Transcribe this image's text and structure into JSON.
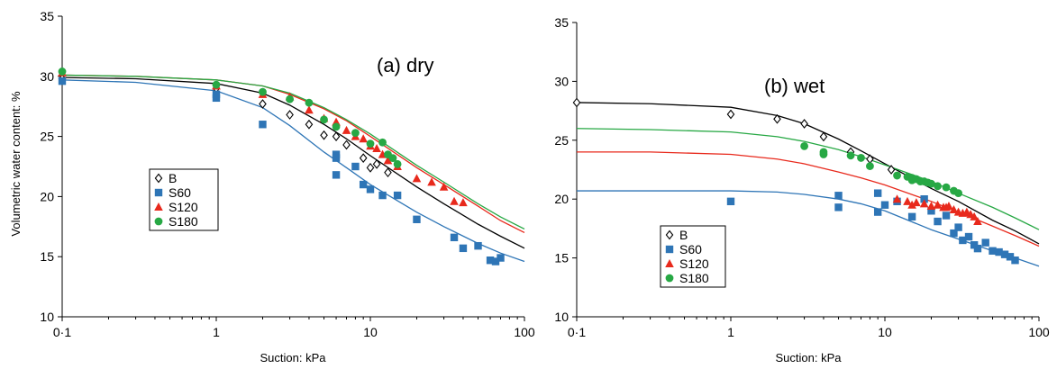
{
  "chart_data": [
    {
      "type": "scatter",
      "title": "(a) dry",
      "xlabel": "Suction: kPa",
      "ylabel": "Volumetric water content: %",
      "xscale": "log",
      "xlim": [
        0.1,
        100
      ],
      "ylim": [
        10,
        35
      ],
      "x_tick_labels": [
        "0·1",
        "1",
        "10",
        "100"
      ],
      "y_tick_labels": [
        "10",
        "15",
        "20",
        "25",
        "30",
        "35"
      ],
      "legend": {
        "entries": [
          "B",
          "S60",
          "S120",
          "S180"
        ],
        "placement": "middle-left"
      },
      "series": [
        {
          "name": "B",
          "color": "#000000",
          "marker": "diamond-open",
          "x": [
            0.1,
            1,
            2,
            3,
            4,
            5,
            6,
            7,
            9,
            10,
            11,
            13
          ],
          "y": [
            29.8,
            29.0,
            27.7,
            26.8,
            26.0,
            25.1,
            25.0,
            24.3,
            23.2,
            22.4,
            22.7,
            22.0
          ],
          "fit": {
            "x": [
              0.1,
              0.3,
              1,
              2,
              3,
              5,
              7,
              10,
              20,
              30,
              50,
              70,
              100
            ],
            "y": [
              29.9,
              29.8,
              29.4,
              28.6,
              27.6,
              26.0,
              24.8,
              23.4,
              20.8,
              19.4,
              17.7,
              16.7,
              15.7
            ]
          }
        },
        {
          "name": "S60",
          "color": "#2e75b6",
          "marker": "square",
          "x": [
            0.1,
            1,
            1,
            2,
            6,
            6,
            6,
            8,
            9,
            10,
            12,
            15,
            20,
            35,
            40,
            50,
            60,
            65,
            70
          ],
          "y": [
            29.6,
            28.5,
            28.2,
            26.0,
            23.5,
            23.2,
            21.8,
            22.5,
            21.0,
            20.6,
            20.1,
            20.1,
            18.1,
            16.6,
            15.7,
            15.9,
            14.7,
            14.6,
            14.9
          ],
          "fit": {
            "x": [
              0.1,
              0.3,
              1,
              2,
              3,
              5,
              7,
              10,
              20,
              30,
              50,
              70,
              100
            ],
            "y": [
              29.7,
              29.5,
              28.8,
              27.4,
              25.9,
              23.7,
              22.4,
              21.0,
              18.7,
              17.5,
              16.1,
              15.3,
              14.6
            ]
          }
        },
        {
          "name": "S120",
          "color": "#e8291c",
          "marker": "triangle",
          "x": [
            0.1,
            1,
            2,
            3,
            4,
            5,
            6,
            7,
            8,
            9,
            10,
            11,
            12,
            13,
            15,
            20,
            25,
            30,
            35,
            40
          ],
          "y": [
            30.3,
            29.2,
            28.5,
            28.3,
            27.2,
            26.5,
            26.2,
            25.5,
            25.0,
            24.8,
            24.2,
            24.0,
            23.5,
            23.0,
            22.5,
            21.5,
            21.2,
            20.8,
            19.6,
            19.5
          ],
          "fit": {
            "x": [
              0.1,
              0.3,
              1,
              2,
              3,
              5,
              7,
              10,
              20,
              30,
              50,
              70,
              100
            ],
            "y": [
              30.1,
              30.0,
              29.7,
              29.2,
              28.5,
              27.3,
              26.3,
              25.0,
              22.4,
              21.0,
              19.2,
              18.0,
              17.0
            ]
          }
        },
        {
          "name": "S180",
          "color": "#27a844",
          "marker": "circle",
          "x": [
            0.1,
            1,
            2,
            3,
            4,
            5,
            6,
            8,
            10,
            12,
            13,
            14,
            15
          ],
          "y": [
            30.4,
            29.3,
            28.7,
            28.1,
            27.8,
            26.4,
            25.8,
            25.3,
            24.4,
            24.5,
            23.5,
            23.2,
            22.7
          ],
          "fit": {
            "x": [
              0.1,
              0.3,
              1,
              2,
              3,
              5,
              7,
              10,
              20,
              30,
              50,
              70,
              100
            ],
            "y": [
              30.1,
              30.0,
              29.7,
              29.2,
              28.6,
              27.4,
              26.4,
              25.2,
              22.6,
              21.2,
              19.4,
              18.3,
              17.3
            ]
          }
        }
      ]
    },
    {
      "type": "scatter",
      "title": "(b) wet",
      "xlabel": "Suction: kPa",
      "ylabel": "",
      "xscale": "log",
      "xlim": [
        0.1,
        100
      ],
      "ylim": [
        10,
        35
      ],
      "x_tick_labels": [
        "0·1",
        "1",
        "10",
        "100"
      ],
      "y_tick_labels": [
        "10",
        "15",
        "20",
        "25",
        "30",
        "35"
      ],
      "legend": {
        "entries": [
          "B",
          "S60",
          "S120",
          "S180"
        ],
        "placement": "bottom-left"
      },
      "series": [
        {
          "name": "B",
          "color": "#000000",
          "marker": "diamond-open",
          "x": [
            0.1,
            1,
            2,
            3,
            4,
            6,
            8,
            11
          ],
          "y": [
            28.2,
            27.2,
            26.8,
            26.4,
            25.3,
            24.0,
            23.4,
            22.5
          ],
          "fit": {
            "x": [
              0.1,
              0.3,
              1,
              2,
              3,
              5,
              7,
              10,
              20,
              30,
              50,
              70,
              100
            ],
            "y": [
              28.2,
              28.1,
              27.8,
              27.1,
              26.4,
              25.1,
              24.1,
              23.0,
              20.9,
              19.8,
              18.2,
              17.3,
              16.2
            ]
          }
        },
        {
          "name": "S60",
          "color": "#2e75b6",
          "marker": "square",
          "x": [
            1,
            5,
            5,
            9,
            9,
            10,
            12,
            15,
            18,
            20,
            22,
            25,
            28,
            30,
            32,
            35,
            38,
            40,
            45,
            50,
            55,
            60,
            65,
            70
          ],
          "y": [
            19.8,
            20.3,
            19.3,
            20.5,
            18.9,
            19.5,
            19.8,
            18.5,
            20.0,
            19.0,
            18.1,
            18.6,
            17.1,
            17.6,
            16.5,
            16.8,
            16.1,
            15.8,
            16.3,
            15.6,
            15.5,
            15.3,
            15.1,
            14.8
          ],
          "fit": {
            "x": [
              0.1,
              0.3,
              1,
              2,
              3,
              5,
              7,
              10,
              20,
              30,
              50,
              70,
              100
            ],
            "y": [
              20.7,
              20.7,
              20.7,
              20.6,
              20.4,
              20.0,
              19.6,
              19.0,
              17.4,
              16.6,
              15.6,
              15.0,
              14.3
            ]
          }
        },
        {
          "name": "S120",
          "color": "#e8291c",
          "marker": "triangle",
          "x": [
            12,
            14,
            15,
            16,
            18,
            20,
            22,
            24,
            25,
            26,
            28,
            30,
            32,
            34,
            36,
            38,
            40
          ],
          "y": [
            20.0,
            19.8,
            19.5,
            19.7,
            19.6,
            19.4,
            19.5,
            19.3,
            19.3,
            19.4,
            19.1,
            18.9,
            18.8,
            18.9,
            18.7,
            18.5,
            18.1
          ],
          "fit": {
            "x": [
              0.1,
              0.3,
              1,
              2,
              3,
              5,
              7,
              10,
              20,
              30,
              50,
              70,
              100
            ],
            "y": [
              24.0,
              24.0,
              23.8,
              23.4,
              23.0,
              22.3,
              21.8,
              21.2,
              19.8,
              18.9,
              17.7,
              16.9,
              16.0
            ]
          }
        },
        {
          "name": "S180",
          "color": "#27a844",
          "marker": "circle",
          "x": [
            3,
            4,
            4,
            6,
            7,
            8,
            12,
            14,
            15,
            15,
            16,
            17,
            18,
            19,
            20,
            22,
            25,
            28,
            30
          ],
          "y": [
            24.5,
            24.0,
            23.8,
            23.7,
            23.5,
            22.8,
            22.0,
            21.9,
            21.8,
            21.6,
            21.7,
            21.5,
            21.5,
            21.4,
            21.3,
            21.1,
            21.0,
            20.7,
            20.5
          ],
          "fit": {
            "x": [
              0.1,
              0.3,
              1,
              2,
              3,
              5,
              7,
              10,
              20,
              30,
              50,
              70,
              100
            ],
            "y": [
              26.0,
              25.9,
              25.7,
              25.3,
              24.9,
              24.2,
              23.6,
              22.9,
              21.5,
              20.5,
              19.3,
              18.4,
              17.4
            ]
          }
        }
      ]
    }
  ]
}
